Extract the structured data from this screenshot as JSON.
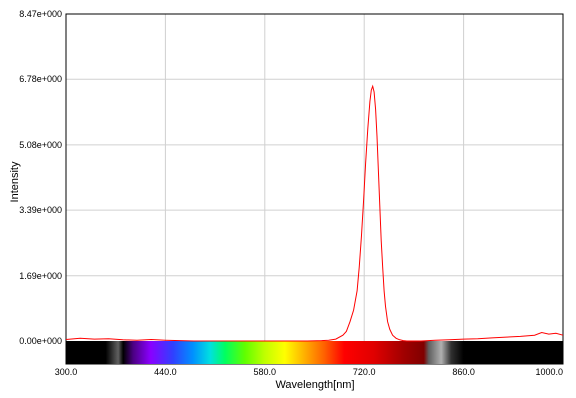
{
  "chart_data": {
    "type": "line",
    "title": "",
    "xlabel": "Wavelength[nm]",
    "ylabel": "Intensity",
    "xlim": [
      300.0,
      1000.0
    ],
    "ylim": [
      0.0,
      8.47
    ],
    "grid": true,
    "x_ticks": [
      {
        "value": 300.0,
        "label": "300.0"
      },
      {
        "value": 440.0,
        "label": "440.0"
      },
      {
        "value": 580.0,
        "label": "580.0"
      },
      {
        "value": 720.0,
        "label": "720.0"
      },
      {
        "value": 860.0,
        "label": "860.0"
      },
      {
        "value": 1000.0,
        "label": "1000.0"
      }
    ],
    "y_ticks": [
      {
        "value": 0.0,
        "label": "0.00e+000"
      },
      {
        "value": 1.69,
        "label": "1.69e+000"
      },
      {
        "value": 3.39,
        "label": "3.39e+000"
      },
      {
        "value": 5.08,
        "label": "5.08e+000"
      },
      {
        "value": 6.78,
        "label": "6.78e+000"
      },
      {
        "value": 8.47,
        "label": "8.47e+000"
      }
    ],
    "series_color": "#ff0000",
    "spectrum_strip": true,
    "series": [
      {
        "x": [
          300,
          320,
          340,
          360,
          380,
          400,
          420,
          440,
          460,
          480,
          500,
          520,
          540,
          560,
          580,
          600,
          620,
          640,
          660,
          670,
          680,
          690,
          695,
          700,
          705,
          710,
          713,
          716,
          719,
          722,
          725,
          728,
          730,
          732,
          734,
          736,
          738,
          740,
          742,
          744,
          746,
          748,
          750,
          753,
          756,
          760,
          765,
          770,
          775,
          780,
          790,
          800,
          820,
          840,
          860,
          880,
          900,
          920,
          940,
          960,
          970,
          980,
          990,
          1000
        ],
        "y": [
          0.04,
          0.07,
          0.05,
          0.06,
          0.03,
          0.02,
          0.04,
          0.02,
          0.01,
          0.0,
          0.0,
          0.0,
          0.0,
          0.0,
          0.0,
          0.0,
          0.0,
          0.0,
          0.01,
          0.02,
          0.05,
          0.15,
          0.25,
          0.5,
          0.8,
          1.3,
          1.9,
          2.7,
          3.6,
          4.6,
          5.5,
          6.2,
          6.5,
          6.6,
          6.45,
          6.0,
          5.3,
          4.4,
          3.5,
          2.6,
          1.9,
          1.3,
          0.9,
          0.5,
          0.3,
          0.15,
          0.07,
          0.03,
          0.01,
          0.0,
          0.0,
          0.0,
          0.02,
          0.03,
          0.05,
          0.06,
          0.08,
          0.1,
          0.12,
          0.15,
          0.22,
          0.18,
          0.2,
          0.15
        ]
      }
    ]
  }
}
